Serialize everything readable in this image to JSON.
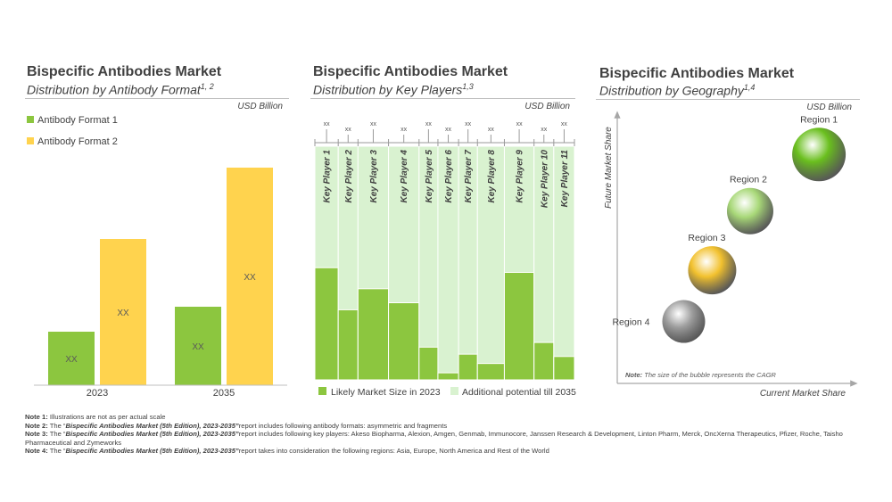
{
  "colors": {
    "green": "#8cc63f",
    "yellow": "#ffd34e",
    "light_green": "#d9f2d0",
    "text": "#404040",
    "rule": "#bfbfbf"
  },
  "panels": [
    {
      "title": "Bispecific Antibodies Market",
      "subtitle": "Distribution by Antibody Format",
      "sup": "1, 2",
      "unit": "USD Billion"
    },
    {
      "title": "Bispecific Antibodies Market",
      "subtitle": "Distribution by Key Players",
      "sup": "1,3",
      "unit": "USD Billion"
    },
    {
      "title": "Bispecific Antibodies Market",
      "subtitle": "Distribution by Geography",
      "sup": "1,4",
      "unit": "USD Billion"
    }
  ],
  "chart_data": [
    {
      "type": "bar",
      "stacked": false,
      "categories": [
        "2023",
        "2035"
      ],
      "series": [
        {
          "name": "Antibody Format 1",
          "color": "#8cc63f",
          "values": [
            15,
            22
          ],
          "labels": [
            "XX",
            "XX"
          ]
        },
        {
          "name": "Antibody Format 2",
          "color": "#ffd34e",
          "values": [
            41,
            61
          ],
          "labels": [
            "XX",
            "XX"
          ]
        }
      ],
      "ylim": [
        0,
        70
      ],
      "legend": "top-left",
      "grid": false
    },
    {
      "type": "bar",
      "stacked": true,
      "categories": [
        "Key Player 1",
        "Key Player 2",
        "Key Player 3",
        "Key Player 4",
        "Key Player 5",
        "Key Player 6",
        "Key Player 7",
        "Key Player 8",
        "Key Player 9",
        "Key Player 10",
        "Key Player 11"
      ],
      "relative_widths": [
        26,
        22,
        34,
        34,
        21,
        23,
        21,
        30,
        33,
        22,
        23
      ],
      "top_labels": [
        "xx",
        "xx",
        "xx",
        "xx",
        "xx",
        "xx",
        "xx",
        "xx",
        "xx",
        "xx",
        "xx"
      ],
      "series": [
        {
          "name": "Likely Market Size in 2023",
          "color": "#8cc63f",
          "values": [
            48,
            30,
            39,
            33,
            14,
            3,
            11,
            7,
            46,
            16,
            10
          ]
        },
        {
          "name": "Additional potential till 2035",
          "color": "#d9f2d0",
          "values": [
            52,
            70,
            61,
            67,
            86,
            97,
            89,
            93,
            54,
            84,
            90
          ]
        }
      ],
      "ylim": [
        0,
        100
      ],
      "legend": "bottom",
      "grid": false
    },
    {
      "type": "bubble",
      "xlabel": "Current Market Share",
      "ylabel": "Future Market Share",
      "points": [
        {
          "name": "Region 1",
          "x": 85,
          "y": 85,
          "size": 30,
          "color": "#6abf1e"
        },
        {
          "name": "Region 2",
          "x": 56,
          "y": 64,
          "size": 26,
          "color": "#a8d878"
        },
        {
          "name": "Region 3",
          "x": 40,
          "y": 42,
          "size": 27,
          "color": "#f2c12e"
        },
        {
          "name": "Region 4",
          "x": 28,
          "y": 23,
          "size": 24,
          "color": "#9e9e9e"
        }
      ],
      "note_label": "Note:",
      "note": "The size of the bubble represents the CAGR"
    }
  ],
  "notes": [
    {
      "label": "Note 1:",
      "prefix": "Illustrations are not as per actual scale",
      "title": "",
      "suffix": ""
    },
    {
      "label": "Note 2:",
      "prefix": "The “",
      "title": "Bispecific Antibodies Market (5th Edition), 2023-2035”",
      "suffix": "report includes following antibody formats: asymmetric and fragments"
    },
    {
      "label": "Note 3:",
      "prefix": "The “",
      "title": "Bispecific Antibodies Market (5th Edition), 2023-2035”",
      "suffix": "report includes following key players: Akeso Biopharma, Alexion, Amgen, Genmab, Immunocore, Janssen Research & Development, Linton Pharm, Merck, OncXerna Therapeutics, Pfizer, Roche, Taisho Pharmaceutical and Zymeworks"
    },
    {
      "label": "Note 4:",
      "prefix": "The “",
      "title": "Bispecific Antibodies Market (5th Edition), 2023-2035”",
      "suffix": "report takes into consideration the following regions: Asia, Europe, North America and Rest of the World"
    }
  ]
}
